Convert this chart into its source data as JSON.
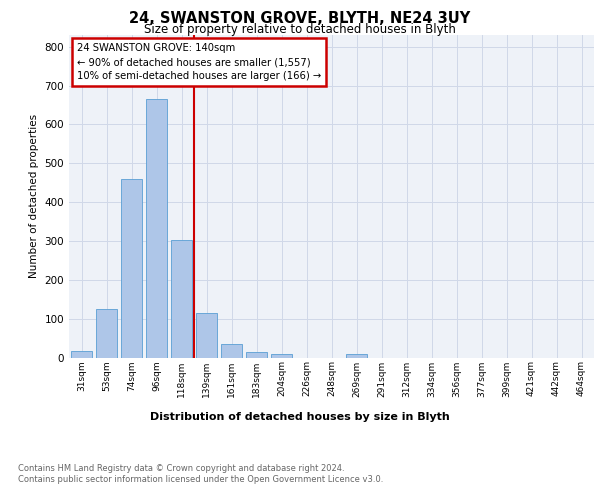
{
  "title": "24, SWANSTON GROVE, BLYTH, NE24 3UY",
  "subtitle": "Size of property relative to detached houses in Blyth",
  "xlabel": "Distribution of detached houses by size in Blyth",
  "ylabel": "Number of detached properties",
  "footnote1": "Contains HM Land Registry data © Crown copyright and database right 2024.",
  "footnote2": "Contains public sector information licensed under the Open Government Licence v3.0.",
  "bar_labels": [
    "31sqm",
    "53sqm",
    "74sqm",
    "96sqm",
    "118sqm",
    "139sqm",
    "161sqm",
    "183sqm",
    "204sqm",
    "226sqm",
    "248sqm",
    "269sqm",
    "291sqm",
    "312sqm",
    "334sqm",
    "356sqm",
    "377sqm",
    "399sqm",
    "421sqm",
    "442sqm",
    "464sqm"
  ],
  "bar_values": [
    18,
    125,
    460,
    665,
    302,
    115,
    35,
    15,
    10,
    0,
    0,
    8,
    0,
    0,
    0,
    0,
    0,
    0,
    0,
    0,
    0
  ],
  "bar_color": "#aec6e8",
  "bar_edge_color": "#5a9fd4",
  "highlight_bar_index": 5,
  "highlight_color": "#cc0000",
  "annotation_title": "24 SWANSTON GROVE: 140sqm",
  "annotation_line1": "← 90% of detached houses are smaller (1,557)",
  "annotation_line2": "10% of semi-detached houses are larger (166) →",
  "annotation_box_color": "#cc0000",
  "ylim": [
    0,
    830
  ],
  "yticks": [
    0,
    100,
    200,
    300,
    400,
    500,
    600,
    700,
    800
  ],
  "background_color": "#eef2f8",
  "plot_bg_color": "#eef2f8",
  "grid_color": "#d0d8e8"
}
